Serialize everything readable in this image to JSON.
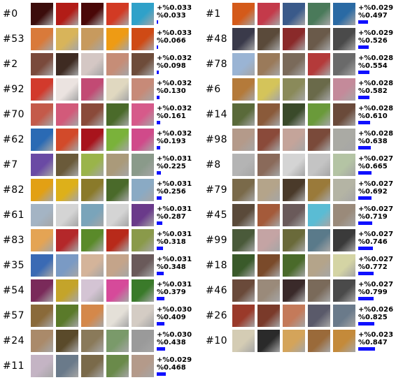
{
  "left_column": [
    {
      "id": "#0",
      "pct": "+%0.033",
      "cum": "%0.033",
      "cum_value": 0.033,
      "colors": [
        "#3c0d0c",
        "#b21c17",
        "#4a0808",
        "#d23a24",
        "#2fa1c9"
      ]
    },
    {
      "id": "#53",
      "pct": "+%0.033",
      "cum": "%0.066",
      "cum_value": 0.066,
      "colors": [
        "#d97a3a",
        "#d8b45a",
        "#c79a5e",
        "#ee9b14",
        "#cf4a15"
      ]
    },
    {
      "id": "#2",
      "pct": "+%0.032",
      "cum": "%0.098",
      "cum_value": 0.098,
      "colors": [
        "#7a4a3c",
        "#3e2b22",
        "#d4c7c4",
        "#c68d77",
        "#6e4c3a"
      ]
    },
    {
      "id": "#92",
      "pct": "+%0.032",
      "cum": "%0.130",
      "cum_value": 0.13,
      "colors": [
        "#d23a2c",
        "#ebe3e0",
        "#c24a74",
        "#e0d8c0",
        "#c78a78"
      ]
    },
    {
      "id": "#70",
      "pct": "+%0.032",
      "cum": "%0.161",
      "cum_value": 0.161,
      "colors": [
        "#c45a4a",
        "#d25a7a",
        "#8a4a3a",
        "#4a6a2a",
        "#d65a8a"
      ]
    },
    {
      "id": "#62",
      "pct": "+%0.032",
      "cum": "%0.193",
      "cum_value": 0.193,
      "colors": [
        "#2a6ab4",
        "#d24a2a",
        "#a8141c",
        "#7ab23a",
        "#d04a8a"
      ]
    },
    {
      "id": "#7",
      "pct": "+%0.031",
      "cum": "%0.225",
      "cum_value": 0.225,
      "colors": [
        "#6a4aa4",
        "#6a5a3a",
        "#9ab44a",
        "#aa9a7a",
        "#8a9a8a"
      ]
    },
    {
      "id": "#82",
      "pct": "+%0.031",
      "cum": "%0.256",
      "cum_value": 0.256,
      "colors": [
        "#e2a014",
        "#ddb01a",
        "#8a7a2a",
        "#4a6a2a",
        "#8aaac4"
      ]
    },
    {
      "id": "#61",
      "pct": "+%0.031",
      "cum": "%0.287",
      "cum_value": 0.287,
      "colors": [
        "#a4b4c4",
        "#d4d4d4",
        "#7aa4ba",
        "#d4d4d4",
        "#6a3a8a"
      ]
    },
    {
      "id": "#83",
      "pct": "+%0.031",
      "cum": "%0.318",
      "cum_value": 0.318,
      "colors": [
        "#e4a454",
        "#b4282a",
        "#5a8a2a",
        "#b82a1a",
        "#8a9a4a"
      ]
    },
    {
      "id": "#35",
      "pct": "+%0.031",
      "cum": "%0.348",
      "cum_value": 0.348,
      "colors": [
        "#3a6ab4",
        "#7a9ac4",
        "#d4b49a",
        "#c4a48a",
        "#6a5a5a"
      ]
    },
    {
      "id": "#54",
      "pct": "+%0.031",
      "cum": "%0.379",
      "cum_value": 0.379,
      "colors": [
        "#7a2a5a",
        "#c4a42a",
        "#d4c4d4",
        "#d64a9a",
        "#3a7a2a"
      ]
    },
    {
      "id": "#57",
      "pct": "+%0.030",
      "cum": "%0.409",
      "cum_value": 0.409,
      "colors": [
        "#8a6a3a",
        "#5a7a2a",
        "#d4884a",
        "#e4e0d8",
        "#d4ccc4"
      ]
    },
    {
      "id": "#24",
      "pct": "+%0.030",
      "cum": "%0.438",
      "cum_value": 0.438,
      "colors": [
        "#aa8a6a",
        "#5a4a2a",
        "#8a7a5a",
        "#7a9a6a",
        "#9a9a9a"
      ]
    },
    {
      "id": "#11",
      "pct": "+%0.029",
      "cum": "%0.468",
      "cum_value": 0.468,
      "colors": [
        "#c4b4c4",
        "#6a7a8a",
        "#7a6a4a",
        "#6a8a4a",
        "#b49a8a"
      ]
    }
  ],
  "right_column": [
    {
      "id": "#1",
      "pct": "+%0.029",
      "cum": "%0.497",
      "cum_value": 0.497,
      "colors": [
        "#d45a1a",
        "#c43a4a",
        "#3a5a8a",
        "#4a7a5a",
        "#2a6aa4"
      ]
    },
    {
      "id": "#48",
      "pct": "+%0.029",
      "cum": "%0.526",
      "cum_value": 0.526,
      "colors": [
        "#3a3a4a",
        "#5a4a3a",
        "#8a2a2a",
        "#6a5a4a",
        "#4a4a4a"
      ]
    },
    {
      "id": "#78",
      "pct": "+%0.028",
      "cum": "%0.554",
      "cum_value": 0.554,
      "colors": [
        "#9ab4d4",
        "#9a7a5a",
        "#7a6a5a",
        "#b43a3a",
        "#6a6a6a"
      ]
    },
    {
      "id": "#6",
      "pct": "+%0.028",
      "cum": "%0.582",
      "cum_value": 0.582,
      "colors": [
        "#b47a3a",
        "#d4c45a",
        "#8a8a5a",
        "#6a6a4a",
        "#c48a9a"
      ]
    },
    {
      "id": "#14",
      "pct": "+%0.028",
      "cum": "%0.610",
      "cum_value": 0.61,
      "colors": [
        "#5a6a3a",
        "#8a5a3a",
        "#3a4a2a",
        "#6a9a3a",
        "#6a4a3a"
      ]
    },
    {
      "id": "#98",
      "pct": "+%0.028",
      "cum": "%0.638",
      "cum_value": 0.638,
      "colors": [
        "#b49a8a",
        "#8a4a3a",
        "#c4a49a",
        "#7a4a3a",
        "#aaaaa4"
      ]
    },
    {
      "id": "#8",
      "pct": "+%0.027",
      "cum": "%0.665",
      "cum_value": 0.665,
      "colors": [
        "#b4b4b4",
        "#8a6a5a",
        "#d4d4d4",
        "#c4c4c4",
        "#b4c4a4"
      ]
    },
    {
      "id": "#79",
      "pct": "+%0.027",
      "cum": "%0.692",
      "cum_value": 0.692,
      "colors": [
        "#7a6a4a",
        "#b4a48a",
        "#4a3a2a",
        "#9a7a3a",
        "#b4b4a4"
      ]
    },
    {
      "id": "#45",
      "pct": "+%0.027",
      "cum": "%0.719",
      "cum_value": 0.719,
      "colors": [
        "#5a4a3a",
        "#a45a3a",
        "#6a5a5a",
        "#5abcd4",
        "#9a8a7a"
      ]
    },
    {
      "id": "#99",
      "pct": "+%0.027",
      "cum": "%0.746",
      "cum_value": 0.746,
      "colors": [
        "#4a5a3a",
        "#c4a4a4",
        "#6a6a3a",
        "#5a7a8a",
        "#3a3a3a"
      ]
    },
    {
      "id": "#18",
      "pct": "+%0.027",
      "cum": "%0.772",
      "cum_value": 0.772,
      "colors": [
        "#3a5a2a",
        "#7a4a2a",
        "#4a6a2a",
        "#b4a48a",
        "#d4d4a4"
      ]
    },
    {
      "id": "#46",
      "pct": "+%0.027",
      "cum": "%0.799",
      "cum_value": 0.799,
      "colors": [
        "#6a4a3a",
        "#9a8a7a",
        "#3a2a2a",
        "#7a6a5a",
        "#4a4a4a"
      ]
    },
    {
      "id": "#26",
      "pct": "+%0.026",
      "cum": "%0.825",
      "cum_value": 0.825,
      "colors": [
        "#9a3a2a",
        "#7a3a2a",
        "#c47a5a",
        "#5a5a6a",
        "#6a7a8a"
      ]
    },
    {
      "id": "#10",
      "pct": "+%0.023",
      "cum": "%0.847",
      "cum_value": 0.847,
      "colors": [
        "#d4ccb4",
        "#2a2a2a",
        "#d4a45a",
        "#9a6a3a",
        "#c48a3a"
      ]
    }
  ]
}
